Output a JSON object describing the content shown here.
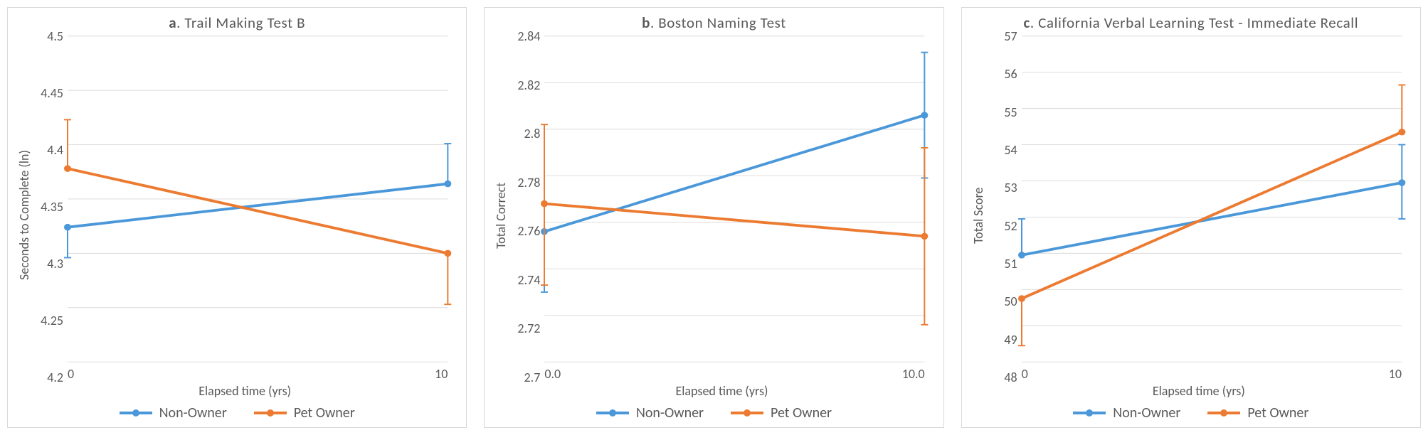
{
  "global": {
    "font_family": "Calibri, Arial, sans-serif",
    "panel_border_color": "#d9d9d9",
    "grid_color": "#d9d9d9",
    "text_color": "#595959",
    "background_color": "#ffffff",
    "series": {
      "non_owner": {
        "label": "Non-Owner",
        "color": "#4a98d9",
        "line_width": 4,
        "marker": "circle",
        "marker_size": 8
      },
      "pet_owner": {
        "label": "Pet Owner",
        "color": "#ec7a30",
        "line_width": 4,
        "marker": "circle",
        "marker_size": 8
      }
    },
    "error_bar_cap_width": 10,
    "error_bar_stroke_width": 2,
    "title_fontsize": 21,
    "axis_label_fontsize": 18,
    "tick_fontsize": 18,
    "legend_fontsize": 20
  },
  "panels": [
    {
      "id": "a",
      "title_prefix": "a",
      "title_rest": ". Trail Making Test B",
      "ylabel": "Seconds to Complete (ln)",
      "xlabel": "Elapsed time (yrs)",
      "type": "line",
      "x_values": [
        0,
        10
      ],
      "x_tick_labels": [
        "0",
        "10"
      ],
      "ylim": [
        4.2,
        4.5
      ],
      "ytick_step": 0.05,
      "ytick_decimals_trim": true,
      "series": [
        {
          "key": "non_owner",
          "y": [
            4.324,
            4.364
          ],
          "err_lo": [
            0.028,
            0.0
          ],
          "err_hi": [
            0.0,
            0.037
          ]
        },
        {
          "key": "pet_owner",
          "y": [
            4.378,
            4.3
          ],
          "err_lo": [
            0.0,
            0.047
          ],
          "err_hi": [
            0.045,
            0.0
          ]
        }
      ]
    },
    {
      "id": "b",
      "title_prefix": "b",
      "title_rest": ". Boston Naming Test",
      "ylabel": "Total Correct",
      "xlabel": "Elapsed time (yrs)",
      "type": "line",
      "x_values": [
        0,
        10
      ],
      "x_tick_labels": [
        "0.0",
        "10.0"
      ],
      "ylim": [
        2.7,
        2.84
      ],
      "ytick_step": 0.02,
      "ytick_decimals_trim": true,
      "series": [
        {
          "key": "non_owner",
          "y": [
            2.756,
            2.806
          ],
          "err_lo": [
            0.026,
            0.027
          ],
          "err_hi": [
            0.0,
            0.027
          ]
        },
        {
          "key": "pet_owner",
          "y": [
            2.768,
            2.754
          ],
          "err_lo": [
            0.035,
            0.038
          ],
          "err_hi": [
            0.034,
            0.038
          ]
        }
      ]
    },
    {
      "id": "c",
      "title_prefix": "c",
      "title_rest": ". California Verbal Learning Test - Immediate Recall",
      "ylabel": "Total Score",
      "xlabel": "Elapsed time (yrs)",
      "type": "line",
      "x_values": [
        0,
        10
      ],
      "x_tick_labels": [
        "0",
        "10"
      ],
      "ylim": [
        48,
        57
      ],
      "ytick_step": 1,
      "ytick_decimals_trim": false,
      "series": [
        {
          "key": "non_owner",
          "y": [
            50.95,
            52.95
          ],
          "err_lo": [
            0.0,
            1.0
          ],
          "err_hi": [
            1.0,
            1.05
          ]
        },
        {
          "key": "pet_owner",
          "y": [
            49.75,
            54.35
          ],
          "err_lo": [
            1.3,
            0.0
          ],
          "err_hi": [
            0.0,
            1.3
          ]
        }
      ]
    }
  ]
}
